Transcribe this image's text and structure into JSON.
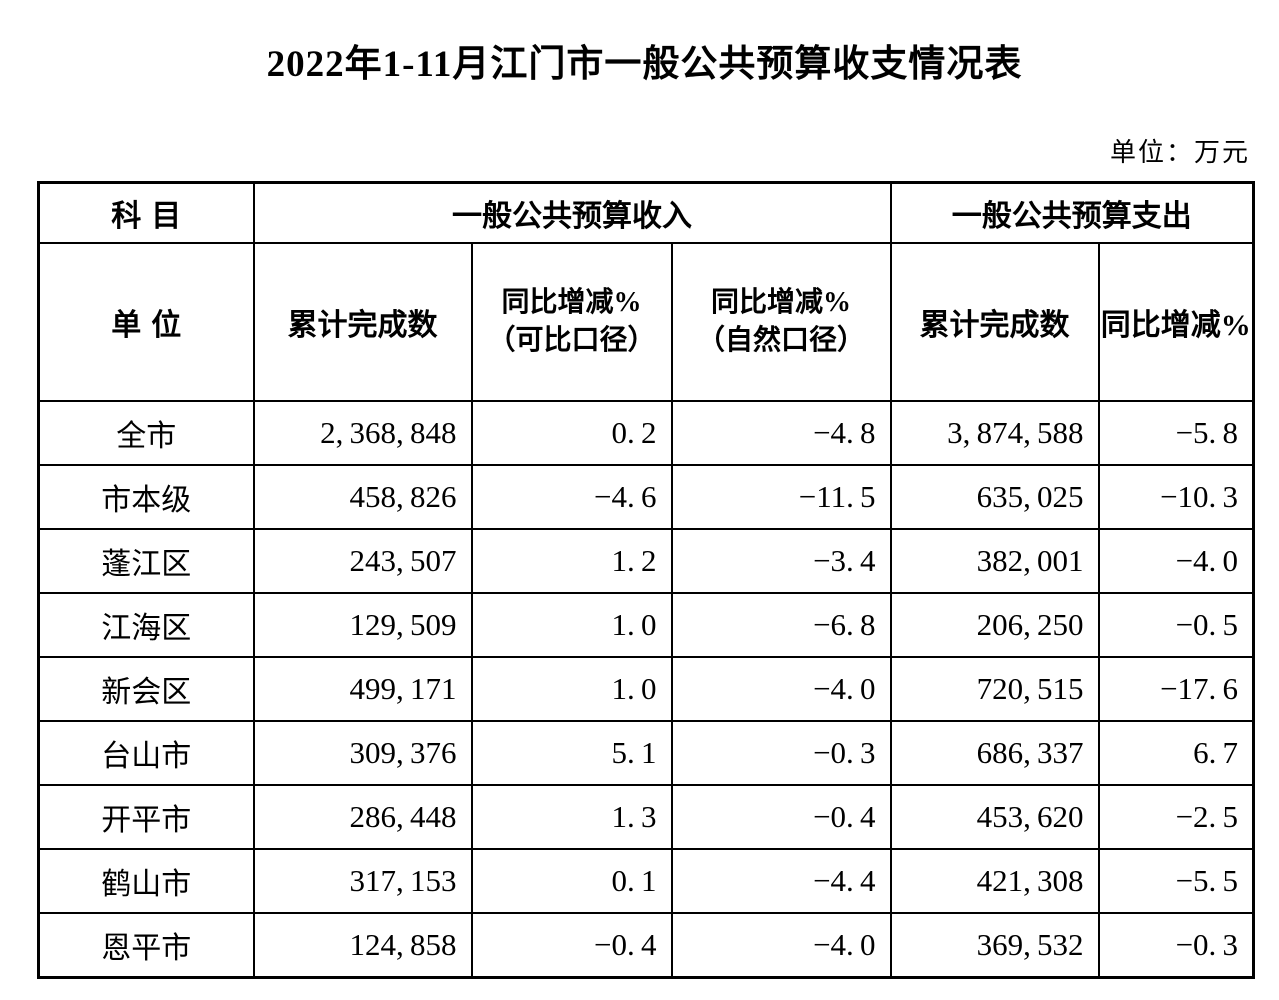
{
  "title": "2022年1-11月江门市一般公共预算收支情况表",
  "unit_note": "单位：万元",
  "colors": {
    "text": "#000000",
    "background": "#ffffff",
    "border": "#000000"
  },
  "table": {
    "header": {
      "row1": {
        "subject": "科目",
        "revenue_group": "一般公共预算收入",
        "expenditure_group": "一般公共预算支出"
      },
      "row2": {
        "unit": "单位",
        "revenue_cumulative": "累计完成数",
        "revenue_yoy_comparable_line1": "同比增减%",
        "revenue_yoy_comparable_line2": "（可比口径）",
        "revenue_yoy_natural_line1": "同比增减%",
        "revenue_yoy_natural_line2": "（自然口径）",
        "expenditure_cumulative": "累计完成数",
        "expenditure_yoy": "同比增减%"
      }
    },
    "rows": [
      {
        "name": "全市",
        "revenue_cumulative": "2,368,848",
        "revenue_yoy_comparable": "0.2",
        "revenue_yoy_natural": "-4.8",
        "expenditure_cumulative": "3,874,588",
        "expenditure_yoy": "-5.8"
      },
      {
        "name": "市本级",
        "revenue_cumulative": "458,826",
        "revenue_yoy_comparable": "-4.6",
        "revenue_yoy_natural": "-11.5",
        "expenditure_cumulative": "635,025",
        "expenditure_yoy": "-10.3"
      },
      {
        "name": "蓬江区",
        "revenue_cumulative": "243,507",
        "revenue_yoy_comparable": "1.2",
        "revenue_yoy_natural": "-3.4",
        "expenditure_cumulative": "382,001",
        "expenditure_yoy": "-4.0"
      },
      {
        "name": "江海区",
        "revenue_cumulative": "129,509",
        "revenue_yoy_comparable": "1.0",
        "revenue_yoy_natural": "-6.8",
        "expenditure_cumulative": "206,250",
        "expenditure_yoy": "-0.5"
      },
      {
        "name": "新会区",
        "revenue_cumulative": "499,171",
        "revenue_yoy_comparable": "1.0",
        "revenue_yoy_natural": "-4.0",
        "expenditure_cumulative": "720,515",
        "expenditure_yoy": "-17.6"
      },
      {
        "name": "台山市",
        "revenue_cumulative": "309,376",
        "revenue_yoy_comparable": "5.1",
        "revenue_yoy_natural": "-0.3",
        "expenditure_cumulative": "686,337",
        "expenditure_yoy": "6.7"
      },
      {
        "name": "开平市",
        "revenue_cumulative": "286,448",
        "revenue_yoy_comparable": "1.3",
        "revenue_yoy_natural": "-0.4",
        "expenditure_cumulative": "453,620",
        "expenditure_yoy": "-2.5"
      },
      {
        "name": "鹤山市",
        "revenue_cumulative": "317,153",
        "revenue_yoy_comparable": "0.1",
        "revenue_yoy_natural": "-4.4",
        "expenditure_cumulative": "421,308",
        "expenditure_yoy": "-5.5"
      },
      {
        "name": "恩平市",
        "revenue_cumulative": "124,858",
        "revenue_yoy_comparable": "-0.4",
        "revenue_yoy_natural": "-4.0",
        "expenditure_cumulative": "369,532",
        "expenditure_yoy": "-0.3"
      }
    ]
  }
}
